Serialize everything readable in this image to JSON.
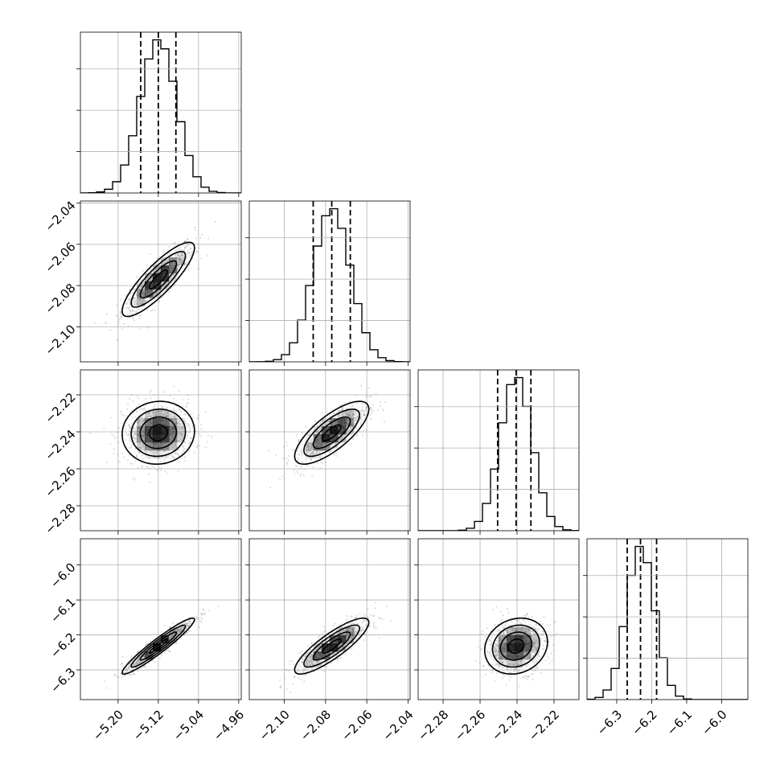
{
  "chart_data": {
    "type": "corner",
    "parameters": [
      {
        "id": "p0",
        "median": -5.12,
        "q16": -5.155,
        "q84": -5.085,
        "sigma": 0.036,
        "range": [
          -5.275,
          -4.955
        ],
        "ticks": [
          {
            "v": -5.2,
            "label": "−5.20"
          },
          {
            "v": -5.12,
            "label": "−5.12"
          },
          {
            "v": -5.04,
            "label": "−5.04"
          },
          {
            "v": -4.96,
            "label": "−4.96"
          }
        ]
      },
      {
        "id": "p1",
        "median": -2.077,
        "q16": -2.086,
        "q84": -2.068,
        "sigma": 0.009,
        "range": [
          -2.117,
          -2.039
        ],
        "ticks": [
          {
            "v": -2.1,
            "label": "−2.10"
          },
          {
            "v": -2.08,
            "label": "−2.08"
          },
          {
            "v": -2.06,
            "label": "−2.06"
          },
          {
            "v": -2.04,
            "label": "−2.04"
          }
        ]
      },
      {
        "id": "p2",
        "median": -2.2405,
        "q16": -2.2505,
        "q84": -2.2325,
        "sigma": 0.0085,
        "range": [
          -2.2935,
          -2.2065
        ],
        "ticks": [
          {
            "v": -2.28,
            "label": "−2.28"
          },
          {
            "v": -2.26,
            "label": "−2.26"
          },
          {
            "v": -2.24,
            "label": "−2.24"
          },
          {
            "v": -2.22,
            "label": "−2.22"
          }
        ]
      },
      {
        "id": "p3",
        "median": -6.232,
        "q16": -6.27,
        "q84": -6.186,
        "sigma": 0.04,
        "range": [
          -6.385,
          -5.925
        ],
        "ticks": [
          {
            "v": -6.3,
            "label": "−6.3"
          },
          {
            "v": -6.2,
            "label": "−6.2"
          },
          {
            "v": -6.1,
            "label": "−6.1"
          },
          {
            "v": -6.0,
            "label": "−6.0"
          }
        ]
      }
    ],
    "correlations": [
      [
        1,
        0.85,
        0.05,
        0.95
      ],
      [
        0.85,
        1,
        0.75,
        0.85
      ],
      [
        0.05,
        0.75,
        1,
        0.15
      ],
      [
        0.95,
        0.85,
        0.15,
        1
      ]
    ],
    "quantiles": [
      0.16,
      0.5,
      0.84
    ],
    "histogram_bins": 20,
    "grid": true,
    "colors": {
      "line": "#000000",
      "points": "#8a8a8a",
      "density": "#000000"
    }
  }
}
